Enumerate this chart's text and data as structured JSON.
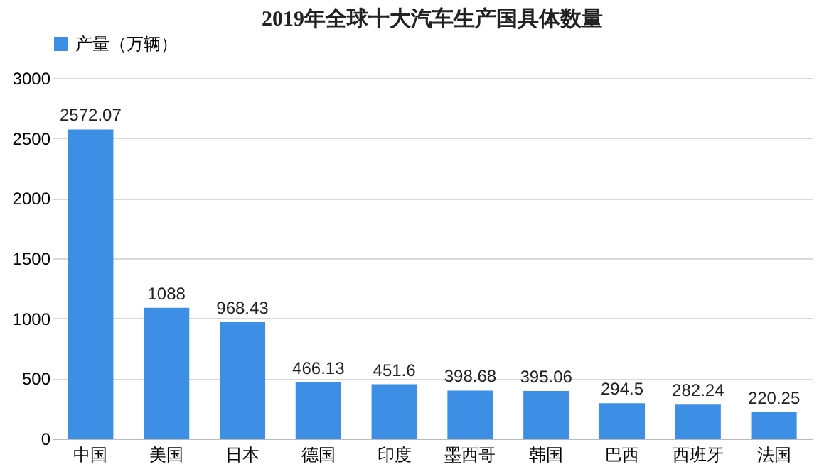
{
  "chart_data": {
    "type": "bar",
    "title": "2019年全球十大汽车生产国具体数量",
    "categories": [
      "中国",
      "美国",
      "日本",
      "德国",
      "印度",
      "墨西哥",
      "韩国",
      "巴西",
      "西班牙",
      "法国"
    ],
    "series": [
      {
        "name": "产量（万辆）",
        "color": "#3d8fe6",
        "values": [
          2572.07,
          1088,
          968.43,
          466.13,
          451.6,
          398.68,
          395.06,
          294.5,
          282.24,
          220.25
        ]
      }
    ],
    "ylim": [
      0,
      3000
    ],
    "yticks": [
      0,
      500,
      1000,
      1500,
      2000,
      2500,
      3000
    ],
    "grid": "y",
    "legend": "top",
    "data_labels": true
  }
}
